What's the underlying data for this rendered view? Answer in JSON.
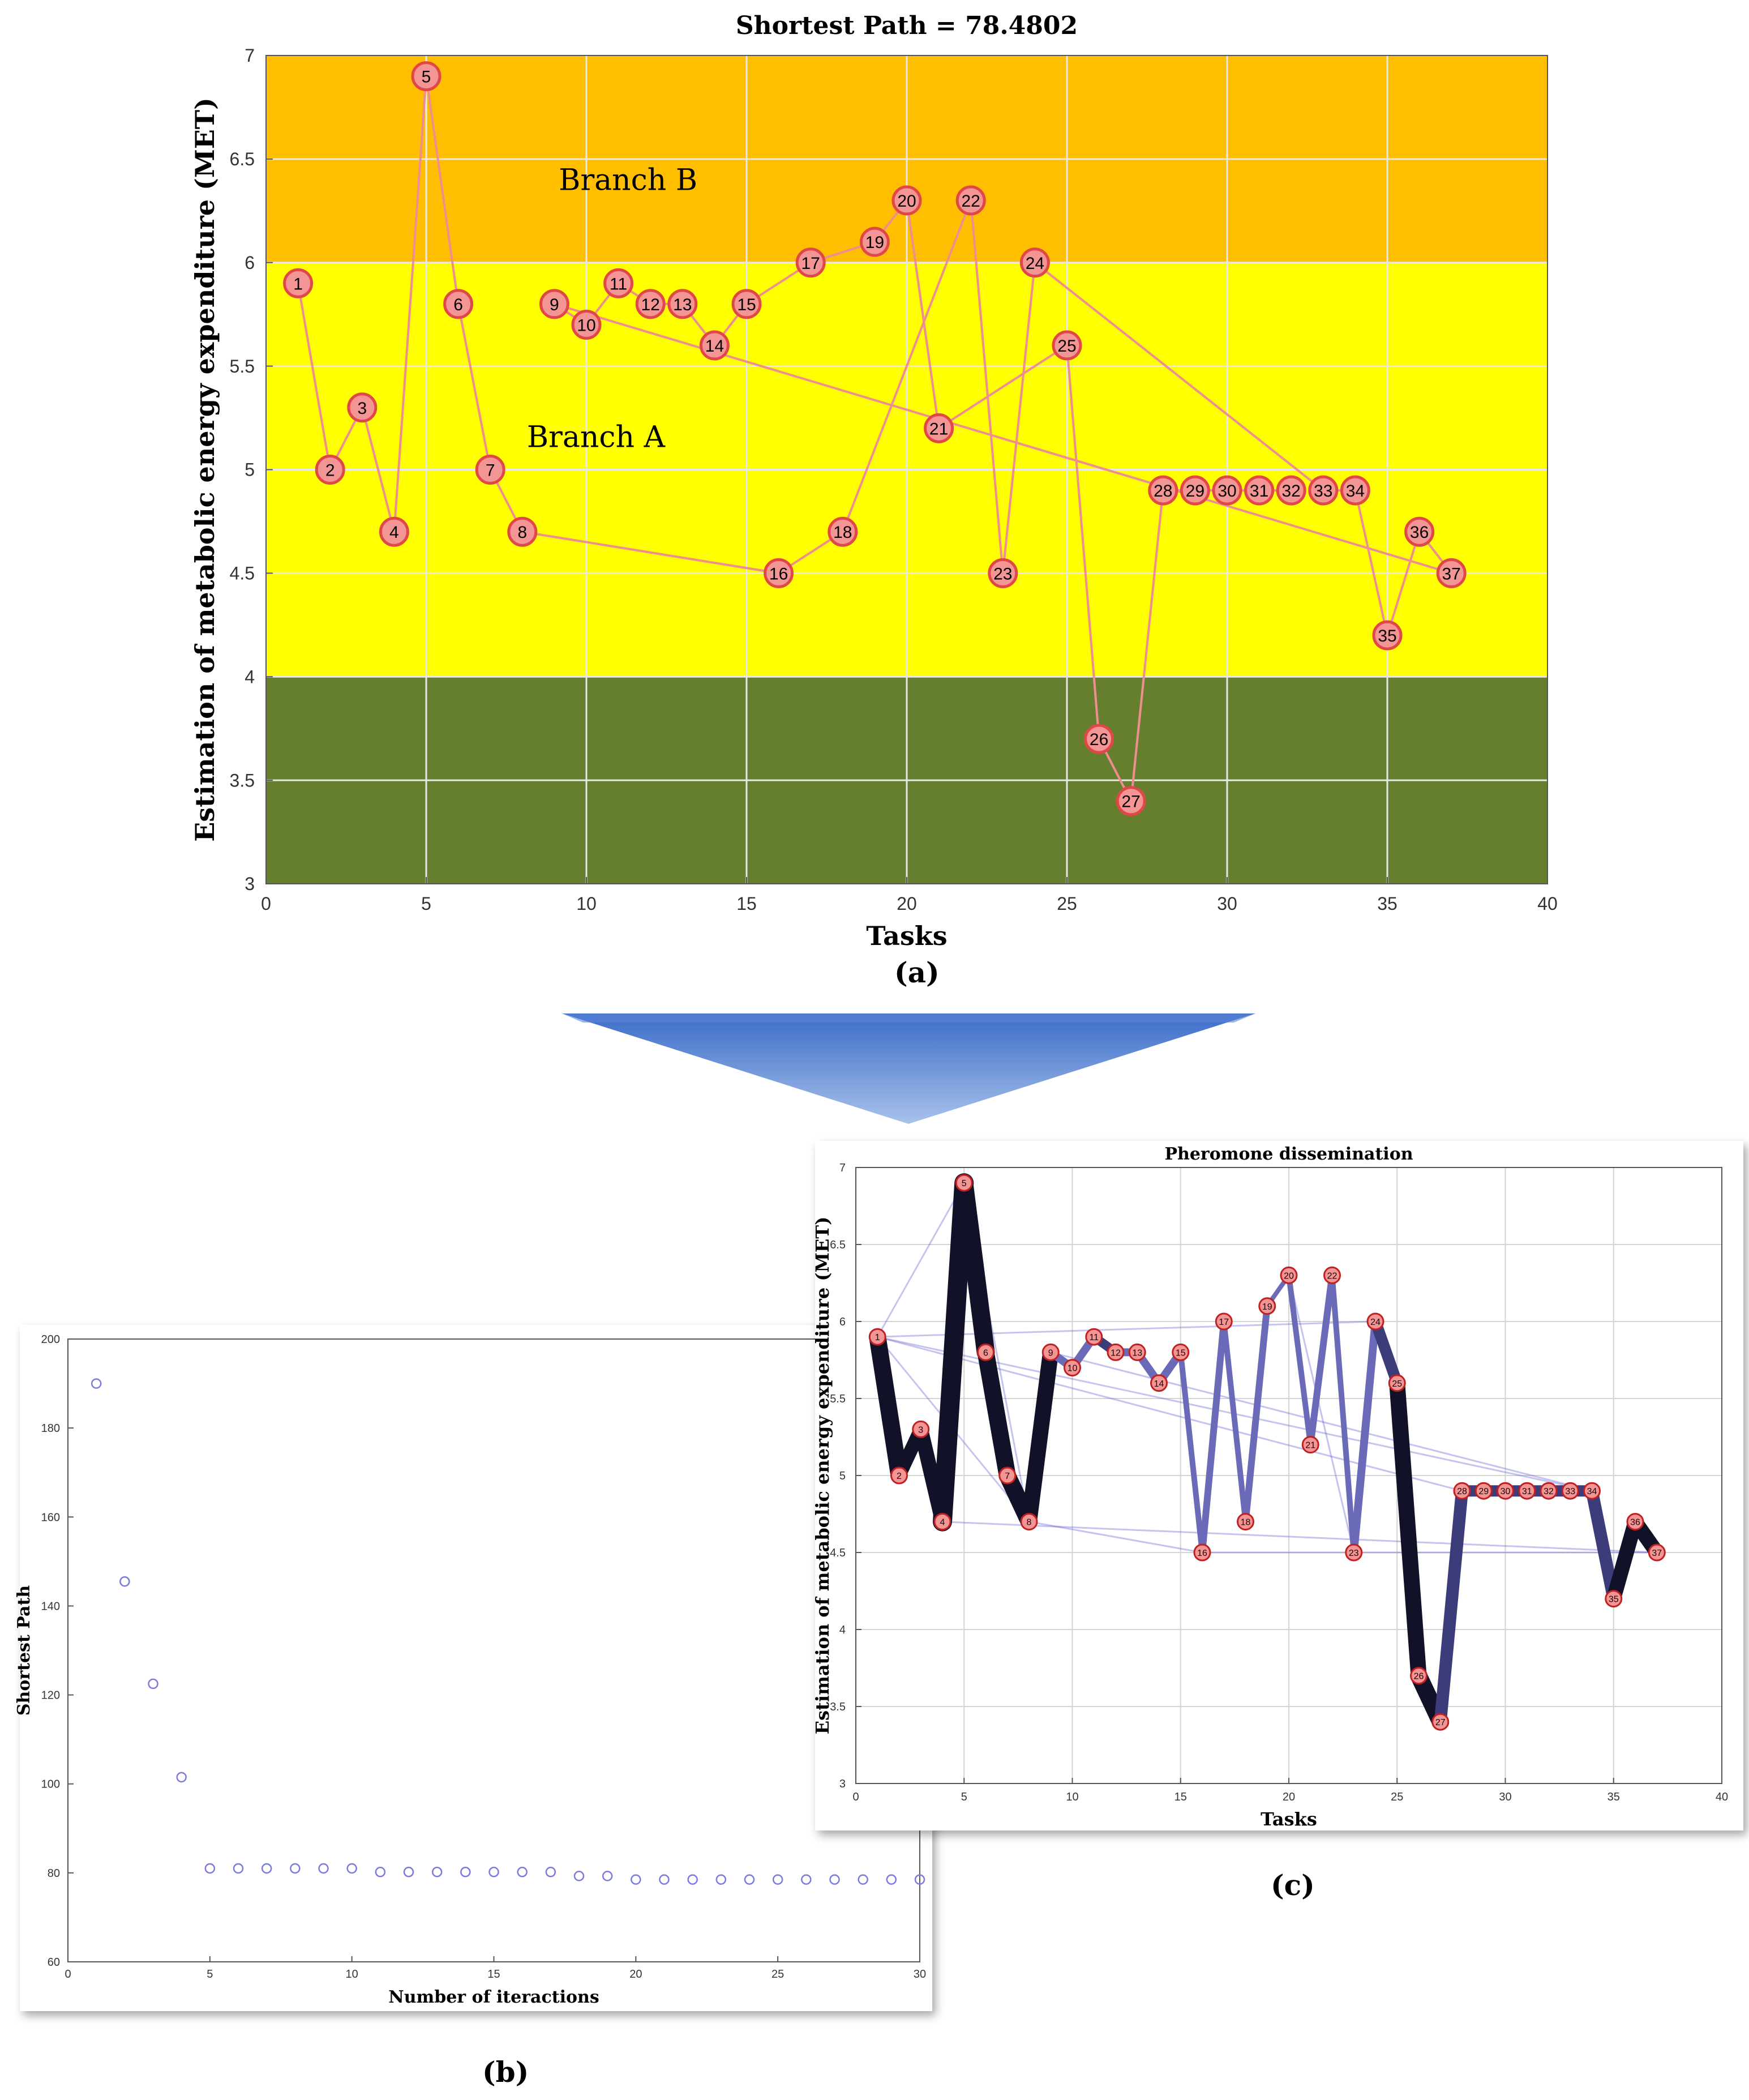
{
  "colors": {
    "band_low": "#667f2e",
    "band_mid": "#ffff00",
    "band_high": "#ffbf00",
    "node_fill": "#f39595",
    "node_stroke": "#e04848",
    "path_line": "#ef8e8e",
    "scatter_marker": "#7a7adf",
    "arrow_light": "#a9c1ec",
    "arrow_dark": "#3d6fce",
    "pheromone_line": "#111128",
    "pheromone_faint": "#5a5ad0"
  },
  "figure": {
    "caption_a": "(a)",
    "caption_b": "(b)",
    "caption_c": "(c)"
  },
  "chart_data": [
    {
      "id": "a",
      "type": "line",
      "title": "Shortest Path  = 78.4802",
      "xlabel": "Tasks",
      "ylabel": "Estimation of metabolic energy expenditure (MET)",
      "xlim": [
        0,
        40
      ],
      "ylim": [
        3,
        7
      ],
      "xticks": [
        0,
        5,
        10,
        15,
        20,
        25,
        30,
        35,
        40
      ],
      "yticks": [
        3,
        3.5,
        4,
        4.5,
        5,
        5.5,
        6,
        6.5,
        7
      ],
      "grid": true,
      "bands": [
        {
          "from": 3,
          "to": 4,
          "color_key": "band_low"
        },
        {
          "from": 4,
          "to": 6,
          "color_key": "band_mid"
        },
        {
          "from": 6,
          "to": 7,
          "color_key": "band_high"
        }
      ],
      "annotations": [
        {
          "text": "Branch B",
          "x": 11.3,
          "y": 6.35
        },
        {
          "text": "Branch A",
          "x": 10.3,
          "y": 5.11
        }
      ],
      "points": [
        {
          "label": "1",
          "x": 1,
          "y": 5.9
        },
        {
          "label": "2",
          "x": 2,
          "y": 5.0
        },
        {
          "label": "3",
          "x": 3,
          "y": 5.3
        },
        {
          "label": "4",
          "x": 4,
          "y": 4.7
        },
        {
          "label": "5",
          "x": 5,
          "y": 6.9
        },
        {
          "label": "6",
          "x": 6,
          "y": 5.8
        },
        {
          "label": "7",
          "x": 7,
          "y": 5.0
        },
        {
          "label": "8",
          "x": 8,
          "y": 4.7
        },
        {
          "label": "9",
          "x": 9,
          "y": 5.8
        },
        {
          "label": "10",
          "x": 10,
          "y": 5.7
        },
        {
          "label": "11",
          "x": 11,
          "y": 5.9
        },
        {
          "label": "12",
          "x": 12,
          "y": 5.8
        },
        {
          "label": "13",
          "x": 13,
          "y": 5.8
        },
        {
          "label": "14",
          "x": 14,
          "y": 5.6
        },
        {
          "label": "15",
          "x": 15,
          "y": 5.8
        },
        {
          "label": "16",
          "x": 16,
          "y": 4.5
        },
        {
          "label": "17",
          "x": 17,
          "y": 6.0
        },
        {
          "label": "18",
          "x": 18,
          "y": 4.7
        },
        {
          "label": "19",
          "x": 19,
          "y": 6.1
        },
        {
          "label": "20",
          "x": 20,
          "y": 6.3
        },
        {
          "label": "21",
          "x": 21,
          "y": 5.2
        },
        {
          "label": "22",
          "x": 22,
          "y": 6.3
        },
        {
          "label": "23",
          "x": 23,
          "y": 4.5
        },
        {
          "label": "24",
          "x": 24,
          "y": 6.0
        },
        {
          "label": "25",
          "x": 25,
          "y": 5.6
        },
        {
          "label": "26",
          "x": 26,
          "y": 3.7
        },
        {
          "label": "27",
          "x": 27,
          "y": 3.4
        },
        {
          "label": "28",
          "x": 28,
          "y": 4.9
        },
        {
          "label": "29",
          "x": 29,
          "y": 4.9
        },
        {
          "label": "30",
          "x": 30,
          "y": 4.9
        },
        {
          "label": "31",
          "x": 31,
          "y": 4.9
        },
        {
          "label": "32",
          "x": 32,
          "y": 4.9
        },
        {
          "label": "33",
          "x": 33,
          "y": 4.9
        },
        {
          "label": "34",
          "x": 34,
          "y": 4.9
        },
        {
          "label": "35",
          "x": 35,
          "y": 4.2
        },
        {
          "label": "36",
          "x": 36,
          "y": 4.7
        },
        {
          "label": "37",
          "x": 37,
          "y": 4.5
        }
      ],
      "path": [
        1,
        2,
        3,
        4,
        5,
        6,
        7,
        8,
        16,
        18,
        22,
        23,
        24,
        33,
        34,
        35,
        36,
        37,
        9,
        10,
        11,
        12,
        13,
        14,
        15,
        17,
        19,
        20,
        21,
        25,
        26,
        27,
        28,
        29,
        30,
        31,
        32
      ]
    },
    {
      "id": "b",
      "type": "scatter",
      "title": "",
      "xlabel": "Number of iteractions",
      "ylabel": "Shortest Path",
      "xlim": [
        0,
        30
      ],
      "ylim": [
        60,
        200
      ],
      "xticks": [
        0,
        5,
        10,
        15,
        20,
        25,
        30
      ],
      "yticks": [
        60,
        80,
        100,
        120,
        140,
        160,
        180,
        200
      ],
      "grid": false,
      "x": [
        1,
        2,
        3,
        4,
        5,
        6,
        7,
        8,
        9,
        10,
        11,
        12,
        13,
        14,
        15,
        16,
        17,
        18,
        19,
        20,
        21,
        22,
        23,
        24,
        25,
        26,
        27,
        28,
        29,
        30
      ],
      "y": [
        190,
        145.5,
        122.5,
        101.5,
        81,
        81,
        81,
        81,
        81,
        81,
        80.2,
        80.2,
        80.2,
        80.2,
        80.2,
        80.2,
        80.2,
        79.3,
        79.3,
        78.5,
        78.5,
        78.5,
        78.5,
        78.5,
        78.5,
        78.5,
        78.5,
        78.5,
        78.5,
        78.5
      ]
    },
    {
      "id": "c",
      "type": "line",
      "title": "Pheromone dissemination",
      "xlabel": "Tasks",
      "ylabel": "Estimation of metabolic energy expenditure (MET)",
      "xlim": [
        0,
        40
      ],
      "ylim": [
        3,
        7
      ],
      "xticks": [
        0,
        5,
        10,
        15,
        20,
        25,
        30,
        35,
        40
      ],
      "yticks": [
        3,
        3.5,
        4,
        4.5,
        5,
        5.5,
        6,
        6.5,
        7
      ],
      "grid": true,
      "strong_path": [
        1,
        2,
        3,
        4,
        5,
        6,
        7,
        8,
        9,
        10,
        11,
        12,
        13,
        14,
        15,
        16,
        17,
        18,
        19,
        20,
        21,
        22,
        23,
        24,
        25,
        26,
        27,
        28,
        29,
        30,
        31,
        32,
        33,
        34,
        35,
        36,
        37
      ],
      "strong_widths": [
        30,
        24,
        26,
        34,
        32,
        30,
        30,
        28,
        14,
        14,
        16,
        14,
        14,
        14,
        10,
        12,
        10,
        12,
        8,
        10,
        12,
        10,
        14,
        20,
        28,
        30,
        22,
        20,
        20,
        20,
        20,
        20,
        20,
        22,
        26,
        26
      ],
      "faint_edges": [
        [
          1,
          5
        ],
        [
          1,
          24
        ],
        [
          1,
          34
        ],
        [
          1,
          28
        ],
        [
          8,
          16
        ],
        [
          16,
          23
        ],
        [
          20,
          23
        ],
        [
          23,
          37
        ],
        [
          1,
          8
        ],
        [
          5,
          8
        ],
        [
          9,
          34
        ],
        [
          4,
          37
        ]
      ]
    }
  ]
}
